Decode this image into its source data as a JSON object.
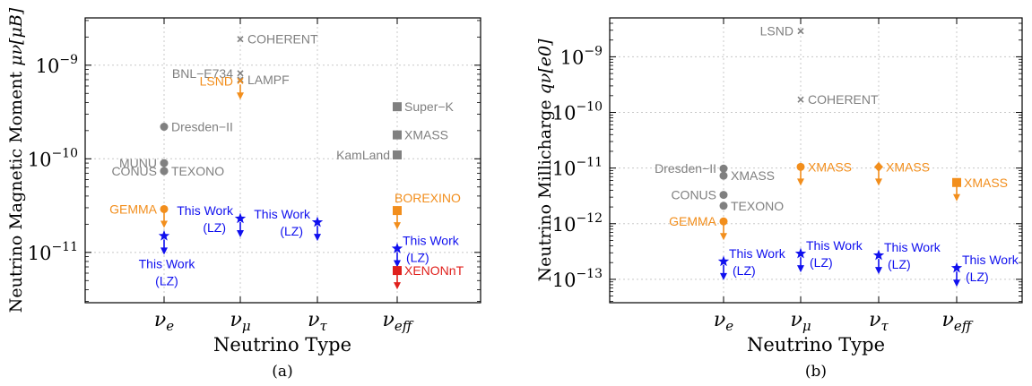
{
  "chart_data": [
    {
      "type": "scatter",
      "panel_label": "(a)",
      "xlabel": "Neutrino Type",
      "ylabel": "Neutrino Magnetic Moment μ_ν[μ_B]",
      "ylabel_main": "Neutrino Magnetic Moment ",
      "ylabel_math": "μν[μB]",
      "y_scale": "log",
      "ylim": [
        2.9e-12,
        3.2e-09
      ],
      "categories": [
        "νe",
        "νμ",
        "ντ",
        "νeff"
      ],
      "category_labels": [
        {
          "base": "ν",
          "sub": "e"
        },
        {
          "base": "ν",
          "sub": "μ"
        },
        {
          "base": "ν",
          "sub": "τ"
        },
        {
          "base": "ν",
          "sub": "eff"
        }
      ],
      "yticks": [
        {
          "value": 1e-11,
          "base": "10",
          "exp": "−11"
        },
        {
          "value": 1e-10,
          "base": "10",
          "exp": "−10"
        },
        {
          "value": 1e-09,
          "base": "10",
          "exp": "−9"
        }
      ],
      "grid": true,
      "points": [
        {
          "x": "νμ",
          "y": 1.9e-09,
          "label": "COHERENT",
          "marker": "x",
          "color": "#808080",
          "limit": false,
          "label_side": "right"
        },
        {
          "x": "νμ",
          "y": 8.2e-10,
          "label": "BNL−E734",
          "marker": "x",
          "color": "#808080",
          "limit": false,
          "label_side": "left"
        },
        {
          "x": "νμ",
          "y": 7e-10,
          "label": "LAMPF",
          "marker": "x",
          "color": "#808080",
          "limit": false,
          "label_side": "right"
        },
        {
          "x": "νμ",
          "y": 6.8e-10,
          "label": "LSND",
          "marker": "x",
          "color": "#f28e1c",
          "limit": true,
          "label_side": "left"
        },
        {
          "x": "νe",
          "y": 2.2e-10,
          "label": "Dresden−II",
          "marker": "circle",
          "color": "#808080",
          "limit": false,
          "label_side": "right"
        },
        {
          "x": "νe",
          "y": 9e-11,
          "label": "MUNU",
          "marker": "circle",
          "color": "#808080",
          "limit": false,
          "label_side": "left"
        },
        {
          "x": "νe",
          "y": 7.4e-11,
          "label": "CONUS",
          "marker": "circle",
          "color": "#808080",
          "limit": false,
          "label_side": "left"
        },
        {
          "x": "νe",
          "y": 7.4e-11,
          "label": "TEXONO",
          "marker": "circle",
          "color": "#808080",
          "limit": false,
          "label_side": "right"
        },
        {
          "x": "νe",
          "y": 2.9e-11,
          "label": "GEMMA",
          "marker": "circle",
          "color": "#f28e1c",
          "limit": true,
          "label_side": "left"
        },
        {
          "x": "νe",
          "y": 1.5e-11,
          "label": "This Work (LZ)",
          "marker": "star",
          "color": "#1010ee",
          "limit": true,
          "label_side": "below"
        },
        {
          "x": "νμ",
          "y": 2.3e-11,
          "label": "This Work (LZ)",
          "marker": "star",
          "color": "#1010ee",
          "limit": true,
          "label_side": "left"
        },
        {
          "x": "ντ",
          "y": 2.1e-11,
          "label": "This Work (LZ)",
          "marker": "star",
          "color": "#1010ee",
          "limit": true,
          "label_side": "left"
        },
        {
          "x": "νeff",
          "y": 3.6e-10,
          "label": "Super−K",
          "marker": "square",
          "color": "#808080",
          "limit": false,
          "label_side": "right"
        },
        {
          "x": "νeff",
          "y": 1.8e-10,
          "label": "XMASS",
          "marker": "square",
          "color": "#808080",
          "limit": false,
          "label_side": "right"
        },
        {
          "x": "νeff",
          "y": 1.1e-10,
          "label": "KamLand",
          "marker": "square",
          "color": "#808080",
          "limit": false,
          "label_side": "left"
        },
        {
          "x": "νeff",
          "y": 2.8e-11,
          "label": "BOREXINO",
          "marker": "square",
          "color": "#f28e1c",
          "limit": true,
          "label_side": "above"
        },
        {
          "x": "νeff",
          "y": 1.1e-11,
          "label": "This Work (LZ)",
          "marker": "star",
          "color": "#1010ee",
          "limit": true,
          "label_side": "right"
        },
        {
          "x": "νeff",
          "y": 6.4e-12,
          "label": "XENONnT",
          "marker": "square",
          "color": "#e0201c",
          "limit": true,
          "label_side": "right"
        }
      ]
    },
    {
      "type": "scatter",
      "panel_label": "(b)",
      "xlabel": "Neutrino Type",
      "ylabel": "Neutrino Millicharge q_ν[e_0]",
      "ylabel_main": "Neutrino Millicharge ",
      "ylabel_math": "qν[e0]",
      "y_scale": "log",
      "ylim": [
        3.8e-14,
        5e-09
      ],
      "categories": [
        "νe",
        "νμ",
        "ντ",
        "νeff"
      ],
      "category_labels": [
        {
          "base": "ν",
          "sub": "e"
        },
        {
          "base": "ν",
          "sub": "μ"
        },
        {
          "base": "ν",
          "sub": "τ"
        },
        {
          "base": "ν",
          "sub": "eff"
        }
      ],
      "yticks": [
        {
          "value": 1e-13,
          "base": "10",
          "exp": "−13"
        },
        {
          "value": 1e-12,
          "base": "10",
          "exp": "−12"
        },
        {
          "value": 1e-11,
          "base": "10",
          "exp": "−11"
        },
        {
          "value": 1e-10,
          "base": "10",
          "exp": "−10"
        },
        {
          "value": 1e-09,
          "base": "10",
          "exp": "−9"
        }
      ],
      "grid": true,
      "points": [
        {
          "x": "νμ",
          "y": 2.9e-09,
          "label": "LSND",
          "marker": "x",
          "color": "#808080",
          "limit": false,
          "label_side": "left"
        },
        {
          "x": "νμ",
          "y": 1.7e-10,
          "label": "COHERENT",
          "marker": "x",
          "color": "#808080",
          "limit": false,
          "label_side": "right"
        },
        {
          "x": "νe",
          "y": 9.8e-12,
          "label": "Dresden−II",
          "marker": "circle",
          "color": "#808080",
          "limit": false,
          "label_side": "left"
        },
        {
          "x": "νe",
          "y": 7.3e-12,
          "label": "XMASS",
          "marker": "circle",
          "color": "#808080",
          "limit": false,
          "label_side": "right"
        },
        {
          "x": "νe",
          "y": 3.3e-12,
          "label": "CONUS",
          "marker": "circle",
          "color": "#808080",
          "limit": false,
          "label_side": "left"
        },
        {
          "x": "νe",
          "y": 2.1e-12,
          "label": "TEXONO",
          "marker": "circle",
          "color": "#808080",
          "limit": false,
          "label_side": "right"
        },
        {
          "x": "νe",
          "y": 1.1e-12,
          "label": "GEMMA",
          "marker": "circle",
          "color": "#f28e1c",
          "limit": true,
          "label_side": "left"
        },
        {
          "x": "νe",
          "y": 2.1e-13,
          "label": "This Work (LZ)",
          "marker": "star",
          "color": "#1010ee",
          "limit": true,
          "label_side": "right"
        },
        {
          "x": "νμ",
          "y": 1.05e-11,
          "label": "XMASS",
          "marker": "circle",
          "color": "#f28e1c",
          "limit": true,
          "label_side": "right"
        },
        {
          "x": "νμ",
          "y": 2.9e-13,
          "label": "This Work (LZ)",
          "marker": "star",
          "color": "#1010ee",
          "limit": true,
          "label_side": "right"
        },
        {
          "x": "ντ",
          "y": 1.05e-11,
          "label": "XMASS",
          "marker": "diamond",
          "color": "#f28e1c",
          "limit": true,
          "label_side": "right"
        },
        {
          "x": "ντ",
          "y": 2.7e-13,
          "label": "This Work (LZ)",
          "marker": "star",
          "color": "#1010ee",
          "limit": true,
          "label_side": "right"
        },
        {
          "x": "νeff",
          "y": 5.5e-12,
          "label": "XMASS",
          "marker": "square",
          "color": "#f28e1c",
          "limit": true,
          "label_side": "right"
        },
        {
          "x": "νeff",
          "y": 1.6e-13,
          "label": "This Work (LZ)",
          "marker": "star",
          "color": "#1010ee",
          "limit": true,
          "label_side": "right"
        }
      ]
    }
  ]
}
